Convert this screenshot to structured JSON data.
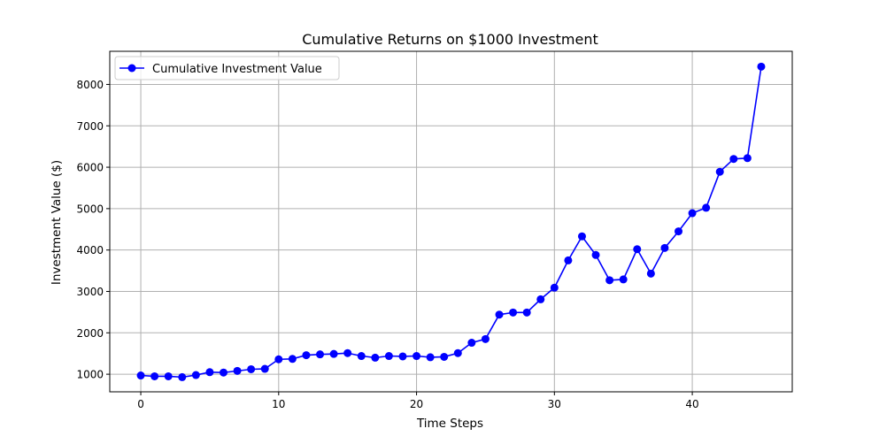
{
  "chart_data": {
    "type": "line",
    "title": "Cumulative Returns on $1000 Investment",
    "xlabel": "Time Steps",
    "ylabel": "Investment Value ($)",
    "xlim": [
      -2.25,
      47.25
    ],
    "ylim": [
      575,
      8800
    ],
    "xticks": [
      0,
      10,
      20,
      30,
      40
    ],
    "yticks": [
      1000,
      2000,
      3000,
      4000,
      5000,
      6000,
      7000,
      8000
    ],
    "grid": true,
    "legend": {
      "position": "top-left"
    },
    "series": [
      {
        "name": "Cumulative Investment Value",
        "color": "#0000ff",
        "marker": "circle",
        "x": [
          0,
          1,
          2,
          3,
          4,
          5,
          6,
          7,
          8,
          9,
          10,
          11,
          12,
          13,
          14,
          15,
          16,
          17,
          18,
          19,
          20,
          21,
          22,
          23,
          24,
          25,
          26,
          27,
          28,
          29,
          30,
          31,
          32,
          33,
          34,
          35,
          36,
          37,
          38,
          39,
          40,
          41,
          42,
          43,
          44,
          45
        ],
        "y": [
          970,
          950,
          950,
          930,
          980,
          1050,
          1040,
          1080,
          1120,
          1130,
          1360,
          1370,
          1460,
          1480,
          1490,
          1510,
          1440,
          1400,
          1440,
          1430,
          1440,
          1410,
          1420,
          1510,
          1760,
          1850,
          2440,
          2490,
          2490,
          2810,
          3090,
          3750,
          4330,
          3880,
          3270,
          3290,
          4020,
          3430,
          4050,
          4450,
          4890,
          5020,
          5890,
          6200,
          6220,
          8430
        ]
      }
    ]
  }
}
